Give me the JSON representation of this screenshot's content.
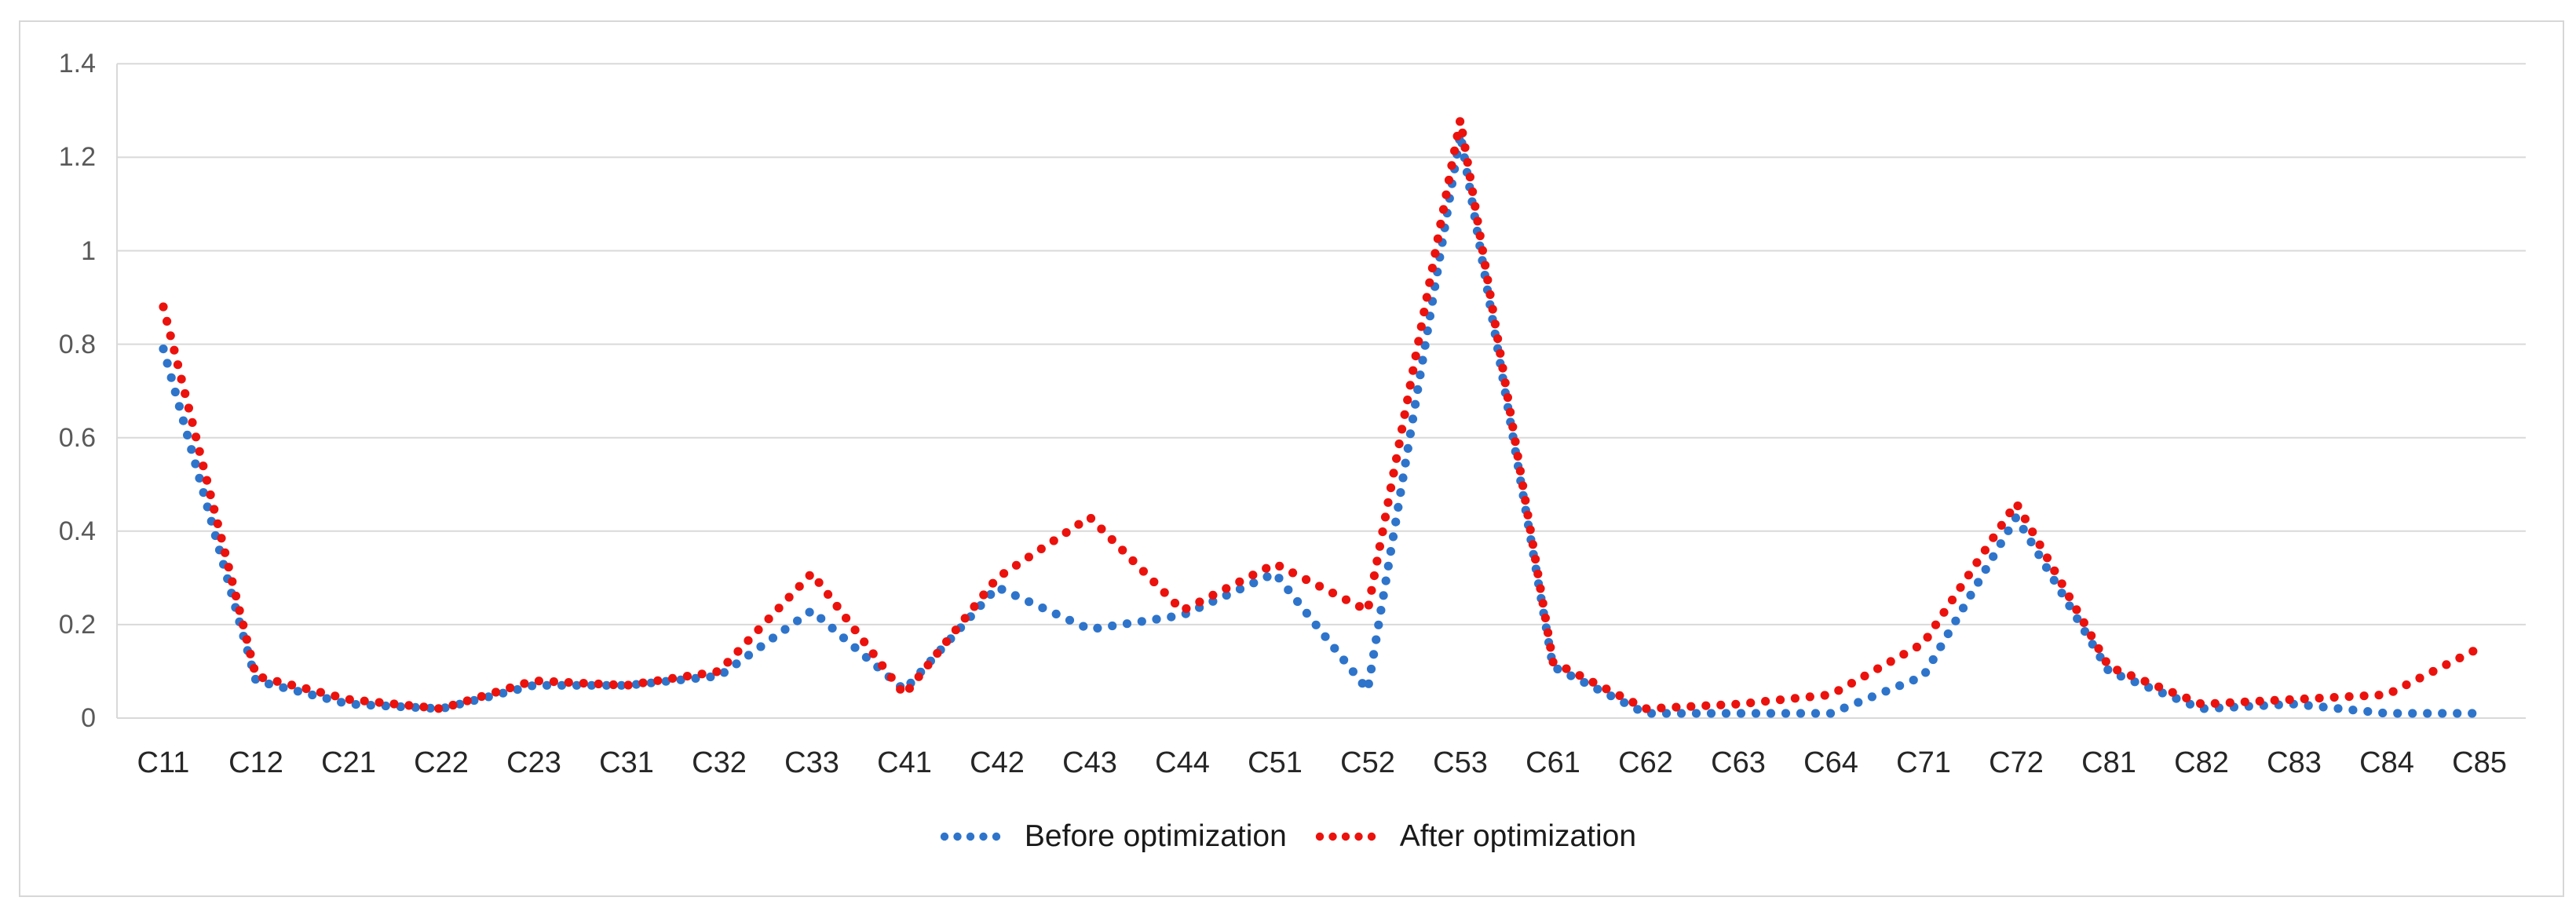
{
  "chart_data": {
    "type": "line",
    "style": "dotted-round-markers",
    "title": "",
    "xlabel": "",
    "ylabel": "",
    "categories": [
      "C11",
      "C12",
      "C21",
      "C22",
      "C23",
      "C31",
      "C32",
      "C33",
      "C41",
      "C42",
      "C43",
      "C44",
      "C51",
      "C52",
      "C53",
      "C61",
      "C62",
      "C63",
      "C64",
      "C71",
      "C72",
      "C81",
      "C82",
      "C83",
      "C84",
      "C85"
    ],
    "series": [
      {
        "name": "Before optimization",
        "color": "#2e74cb",
        "values": [
          0.79,
          0.08,
          0.03,
          0.02,
          0.07,
          0.07,
          0.09,
          0.23,
          0.06,
          0.28,
          0.19,
          0.22,
          0.31,
          0.06,
          1.25,
          0.11,
          0.01,
          0.01,
          0.01,
          0.09,
          0.43,
          0.1,
          0.02,
          0.03,
          0.01,
          0.01
        ]
      },
      {
        "name": "After optimization",
        "color": "#eb120d",
        "values": [
          0.88,
          0.09,
          0.04,
          0.02,
          0.08,
          0.07,
          0.1,
          0.31,
          0.05,
          0.3,
          0.43,
          0.23,
          0.33,
          0.23,
          1.28,
          0.12,
          0.02,
          0.03,
          0.05,
          0.16,
          0.46,
          0.11,
          0.03,
          0.04,
          0.05,
          0.15
        ]
      }
    ],
    "y_axis": {
      "min": 0,
      "max": 1.4,
      "step": 0.2,
      "tick_labels": [
        "0",
        "0.2",
        "0.4",
        "0.6",
        "0.8",
        "1",
        "1.2",
        "1.4"
      ]
    },
    "grid": "horizontal",
    "legend_position": "bottom-center",
    "colors": {
      "gridline": "#d9d9d9",
      "axis_line": "#d9d9d9",
      "y_tick_text": "#595959",
      "x_tick_text": "#262626",
      "legend_text": "#1a1a1a",
      "frame_border": "#d7d7d7",
      "background": "#ffffff"
    }
  }
}
